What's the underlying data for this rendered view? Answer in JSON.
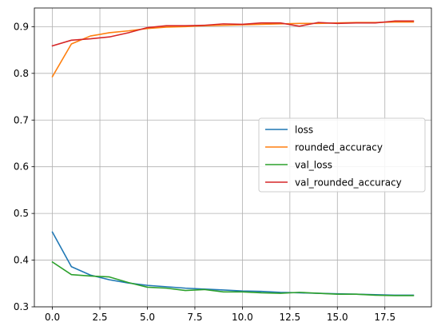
{
  "chart_data": {
    "type": "line",
    "title": "",
    "xlabel": "",
    "ylabel": "",
    "xlim": [
      -0.95,
      19.95
    ],
    "ylim": [
      0.3,
      0.94
    ],
    "grid": true,
    "legend_position": "center-right",
    "x": [
      0,
      1,
      2,
      3,
      4,
      5,
      6,
      7,
      8,
      9,
      10,
      11,
      12,
      13,
      14,
      15,
      16,
      17,
      18,
      19
    ],
    "x_ticks": [
      0.0,
      2.5,
      5.0,
      7.5,
      10.0,
      12.5,
      15.0,
      17.5
    ],
    "x_tick_labels": [
      "0.0",
      "2.5",
      "5.0",
      "7.5",
      "10.0",
      "12.5",
      "15.0",
      "17.5"
    ],
    "y_ticks": [
      0.3,
      0.4,
      0.5,
      0.6,
      0.7,
      0.8,
      0.9
    ],
    "y_tick_labels": [
      "0.3",
      "0.4",
      "0.5",
      "0.6",
      "0.7",
      "0.8",
      "0.9"
    ],
    "series": [
      {
        "name": "loss",
        "color": "#1f77b4",
        "values": [
          0.46,
          0.386,
          0.368,
          0.358,
          0.351,
          0.346,
          0.343,
          0.34,
          0.338,
          0.336,
          0.334,
          0.333,
          0.331,
          0.33,
          0.329,
          0.328,
          0.327,
          0.326,
          0.325,
          0.325
        ]
      },
      {
        "name": "rounded_accuracy",
        "color": "#ff7f0e",
        "values": [
          0.793,
          0.863,
          0.88,
          0.887,
          0.891,
          0.896,
          0.899,
          0.9,
          0.902,
          0.903,
          0.904,
          0.905,
          0.906,
          0.907,
          0.907,
          0.908,
          0.909,
          0.909,
          0.91,
          0.91
        ]
      },
      {
        "name": "val_loss",
        "color": "#2ca02c",
        "values": [
          0.396,
          0.369,
          0.366,
          0.364,
          0.352,
          0.342,
          0.34,
          0.335,
          0.337,
          0.332,
          0.332,
          0.33,
          0.329,
          0.331,
          0.329,
          0.327,
          0.327,
          0.325,
          0.324,
          0.324
        ]
      },
      {
        "name": "val_rounded_accuracy",
        "color": "#d62728",
        "values": [
          0.859,
          0.871,
          0.874,
          0.878,
          0.887,
          0.898,
          0.902,
          0.902,
          0.903,
          0.906,
          0.905,
          0.908,
          0.908,
          0.901,
          0.909,
          0.907,
          0.908,
          0.908,
          0.912,
          0.912
        ]
      }
    ]
  }
}
